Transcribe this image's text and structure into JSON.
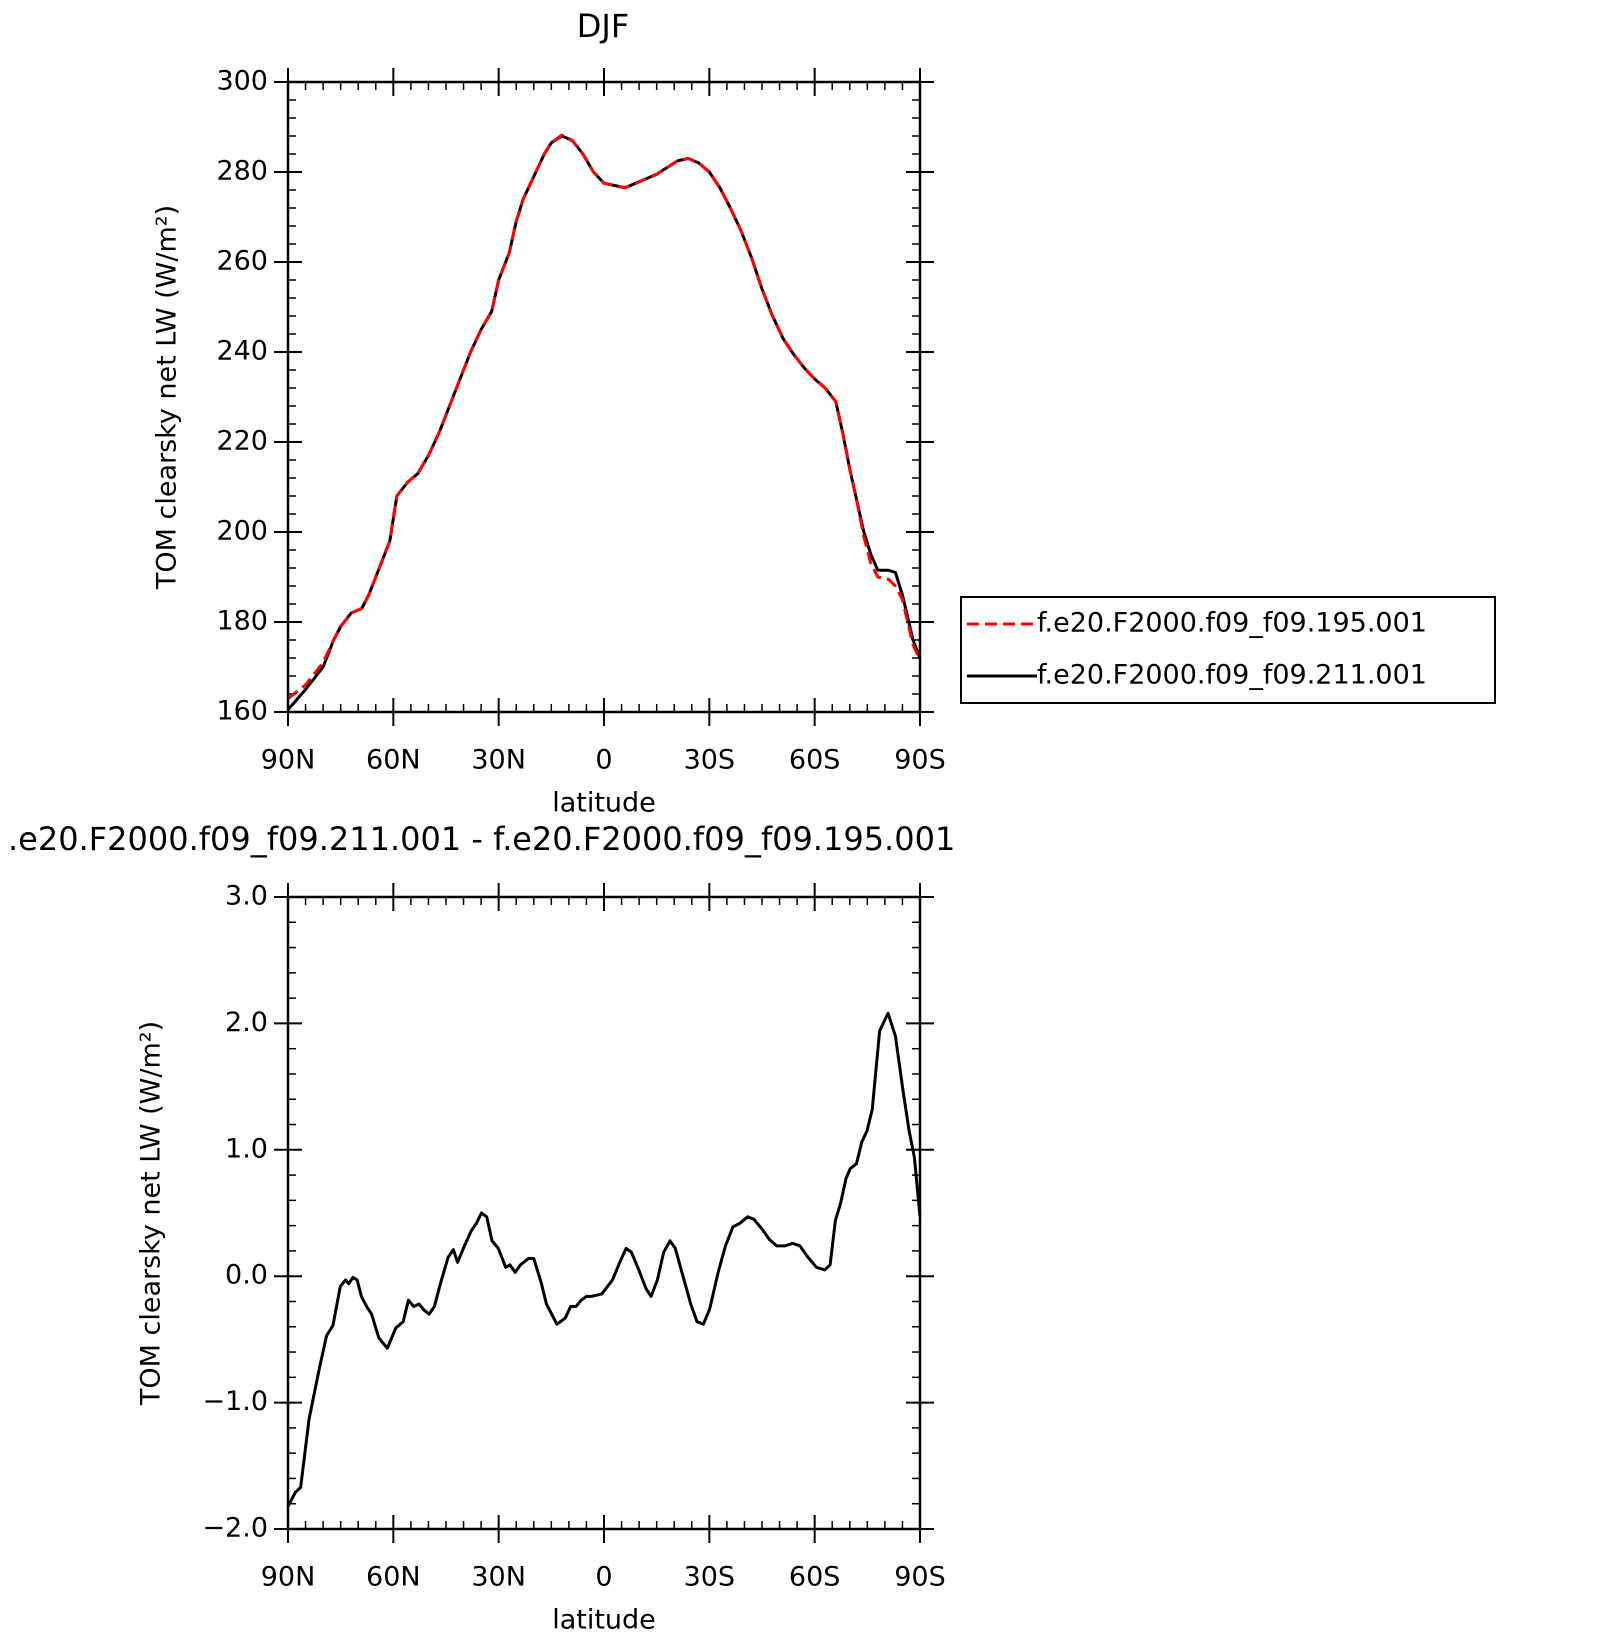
{
  "chart_data": [
    {
      "type": "line",
      "title": "DJF",
      "xlabel": "latitude",
      "ylabel": "TOM clearsky net LW (W/m²)",
      "xlim": [
        90,
        -90
      ],
      "xticks": [
        {
          "value": 90,
          "label": "90N"
        },
        {
          "value": 60,
          "label": "60N"
        },
        {
          "value": 30,
          "label": "30N"
        },
        0,
        {
          "value": -30,
          "label": "30S"
        },
        {
          "value": -60,
          "label": "60S"
        },
        {
          "value": -90,
          "label": "90S"
        }
      ],
      "xminorticks": [
        85,
        80,
        75,
        70,
        65,
        55,
        50,
        45,
        40,
        35,
        25,
        20,
        15,
        10,
        5,
        -5,
        -10,
        -15,
        -20,
        -25,
        -35,
        -40,
        -45,
        -50,
        -55,
        -65,
        -70,
        -75,
        -80,
        -85
      ],
      "ylim": [
        160,
        300
      ],
      "yticks": [
        160,
        180,
        200,
        220,
        240,
        260,
        280,
        300
      ],
      "yminorticks": [
        164,
        168,
        172,
        176,
        184,
        188,
        192,
        196,
        204,
        208,
        212,
        216,
        224,
        228,
        232,
        236,
        244,
        248,
        252,
        256,
        264,
        268,
        272,
        276,
        284,
        288,
        292,
        296
      ],
      "legend": "right",
      "x": [
        90,
        85,
        80,
        77,
        75,
        72,
        69,
        67,
        64,
        61,
        59,
        56,
        53,
        50,
        47,
        44,
        41,
        38,
        35,
        32,
        30,
        27,
        25,
        23,
        20,
        17,
        15,
        12,
        9,
        6,
        3,
        0,
        -3,
        -6,
        -9,
        -12,
        -15,
        -18,
        -21,
        -24,
        -27,
        -30,
        -33,
        -36,
        -39,
        -42,
        -45,
        -48,
        -51,
        -54,
        -57,
        -60,
        -63,
        -66,
        -68,
        -70,
        -72,
        -74,
        -76,
        -78,
        -81,
        -83,
        -85,
        -88,
        -90
      ],
      "series": [
        {
          "name": "f.e20.F2000.f09_f09.195.001",
          "color": "#ff0000",
          "dash": true,
          "values": [
            163,
            166,
            171,
            176,
            179,
            182,
            183,
            186,
            192,
            198,
            208,
            211,
            213,
            217,
            222,
            228,
            234,
            240,
            245,
            249,
            256,
            262,
            269,
            274,
            279,
            284,
            286.5,
            288.2,
            287,
            284,
            280,
            277.5,
            277,
            276.5,
            277.5,
            278.5,
            279.5,
            281,
            282.5,
            283,
            282,
            280,
            276.5,
            272,
            267,
            261,
            254,
            248,
            243,
            239.5,
            236.5,
            234,
            232,
            229,
            222,
            214,
            207,
            199,
            193,
            190,
            189.5,
            188,
            185,
            175,
            171.5
          ]
        },
        {
          "name": "f.e20.F2000.f09_f09.211.001",
          "color": "#000000",
          "dash": false,
          "values": [
            160.5,
            165,
            170,
            176,
            179,
            182,
            183,
            186,
            192,
            198,
            208,
            211,
            213,
            217,
            222,
            228,
            234,
            240,
            245,
            249,
            256,
            262,
            269,
            274,
            279,
            284,
            286.5,
            288,
            287,
            284,
            280,
            277.5,
            277,
            276.5,
            277.5,
            278.5,
            279.5,
            281,
            282.5,
            283,
            282,
            280,
            276.5,
            272,
            267,
            261,
            254,
            248,
            243,
            239.5,
            236.5,
            234,
            232,
            229,
            222,
            214,
            207,
            200,
            195,
            191.5,
            191.5,
            191,
            186,
            176,
            172
          ]
        }
      ]
    },
    {
      "type": "line",
      "title": ".e20.F2000.f09_f09.211.001 - f.e20.F2000.f09_f09.195.001",
      "xlabel": "latitude",
      "ylabel": "TOM clearsky net LW (W/m²)",
      "xlim": [
        90,
        -90
      ],
      "xticks": [
        {
          "value": 90,
          "label": "90N"
        },
        {
          "value": 60,
          "label": "60N"
        },
        {
          "value": 30,
          "label": "30N"
        },
        0,
        {
          "value": -30,
          "label": "30S"
        },
        {
          "value": -60,
          "label": "60S"
        },
        {
          "value": -90,
          "label": "90S"
        }
      ],
      "xminorticks": [
        85,
        80,
        75,
        70,
        65,
        55,
        50,
        45,
        40,
        35,
        25,
        20,
        15,
        10,
        5,
        -5,
        -10,
        -15,
        -20,
        -25,
        -35,
        -40,
        -45,
        -50,
        -55,
        -65,
        -70,
        -75,
        -80,
        -85
      ],
      "ylim": [
        -2,
        3
      ],
      "yticks": [
        {
          "value": -2,
          "label": "−2.0"
        },
        {
          "value": -1,
          "label": "−1.0"
        },
        {
          "value": 0,
          "label": "0.0"
        },
        {
          "value": 1,
          "label": "1.0"
        },
        {
          "value": 2,
          "label": "2.0"
        },
        {
          "value": 3,
          "label": "3.0"
        }
      ],
      "yminorticks": [
        -1.8,
        -1.6,
        -1.4,
        -1.2,
        -0.8,
        -0.6,
        -0.4,
        -0.2,
        0.2,
        0.4,
        0.6,
        0.8,
        1.2,
        1.4,
        1.6,
        1.8,
        2.2,
        2.4,
        2.6,
        2.8
      ],
      "x": [
        90,
        87.9,
        86.4,
        84,
        81,
        79,
        77.2,
        75.1,
        73.6,
        72.7,
        71.5,
        70.3,
        69.1,
        67.6,
        66.2,
        64.1,
        61.7,
        59.3,
        57.2,
        55.7,
        54.2,
        52.7,
        51.2,
        49.8,
        48.3,
        46.8,
        44.4,
        42.9,
        41.7,
        39.9,
        37.8,
        36.3,
        34.9,
        33.4,
        31.9,
        30.1,
        28,
        26.8,
        25.3,
        23.8,
        21.5,
        20,
        17.9,
        16.4,
        13.4,
        11,
        9.5,
        8,
        6.5,
        5,
        3.6,
        0.6,
        -2.4,
        -4.5,
        -6.3,
        -7.8,
        -9.9,
        -12,
        -13.4,
        -15.2,
        -17,
        -18.8,
        -20.3,
        -22.4,
        -24.7,
        -26.5,
        -28.3,
        -30.1,
        -32.5,
        -34.6,
        -36.7,
        -38.8,
        -40.9,
        -42.7,
        -45.1,
        -47.1,
        -49.2,
        -51.6,
        -53.7,
        -55.8,
        -58.1,
        -60.5,
        -62.9,
        -64.4,
        -65.9,
        -67.4,
        -68.9,
        -70.1,
        -71.9,
        -73.4,
        -74.9,
        -76.4,
        -78.5,
        -80.9,
        -83,
        -85.1,
        -86.9,
        -88.4,
        -90
      ],
      "series": [
        {
          "color": "#000000",
          "dash": false,
          "values": [
            -1.82,
            -1.71,
            -1.67,
            -1.13,
            -0.72,
            -0.47,
            -0.39,
            -0.08,
            -0.03,
            -0.06,
            -0.01,
            -0.03,
            -0.16,
            -0.24,
            -0.3,
            -0.49,
            -0.57,
            -0.41,
            -0.36,
            -0.19,
            -0.24,
            -0.22,
            -0.27,
            -0.3,
            -0.24,
            -0.08,
            0.15,
            0.21,
            0.11,
            0.23,
            0.36,
            0.42,
            0.5,
            0.47,
            0.28,
            0.22,
            0.07,
            0.09,
            0.03,
            0.09,
            0.14,
            0.14,
            -0.05,
            -0.22,
            -0.38,
            -0.33,
            -0.24,
            -0.24,
            -0.19,
            -0.16,
            -0.16,
            -0.14,
            -0.03,
            0.11,
            0.22,
            0.19,
            0.05,
            -0.1,
            -0.16,
            -0.03,
            0.19,
            0.28,
            0.22,
            0.01,
            -0.22,
            -0.36,
            -0.38,
            -0.26,
            0.03,
            0.24,
            0.39,
            0.42,
            0.47,
            0.45,
            0.37,
            0.29,
            0.24,
            0.24,
            0.26,
            0.24,
            0.15,
            0.07,
            0.05,
            0.09,
            0.44,
            0.58,
            0.77,
            0.85,
            0.89,
            1.06,
            1.15,
            1.32,
            1.94,
            2.08,
            1.9,
            1.48,
            1.15,
            0.94,
            0.47
          ]
        }
      ]
    }
  ]
}
